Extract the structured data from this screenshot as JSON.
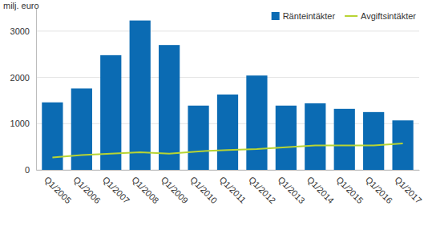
{
  "chart_data": {
    "type": "bar",
    "y_label": "milj. euro",
    "categories": [
      "Q1/2005",
      "Q1/2006",
      "Q1/2007",
      "Q1/2008",
      "Q1/2009",
      "Q1/2010",
      "Q1/2011",
      "Q1/2012",
      "Q1/2013",
      "Q1/2014",
      "Q1/2015",
      "Q1/2016",
      "Q1/2017"
    ],
    "series": [
      {
        "name": "Ränteintäkter",
        "type": "bar",
        "color": "#0b6bb3",
        "values": [
          1460,
          1760,
          2480,
          3230,
          2700,
          1390,
          1630,
          2040,
          1390,
          1440,
          1320,
          1250,
          1070
        ]
      },
      {
        "name": "Avgiftsintäkter",
        "type": "line",
        "color": "#b8d433",
        "values": [
          270,
          320,
          350,
          380,
          350,
          400,
          430,
          450,
          490,
          530,
          530,
          530,
          570
        ]
      }
    ],
    "ylim": [
      0,
      3500
    ],
    "yticks": [
      0,
      1000,
      2000,
      3000
    ],
    "grid": true,
    "legend": "top-right"
  }
}
